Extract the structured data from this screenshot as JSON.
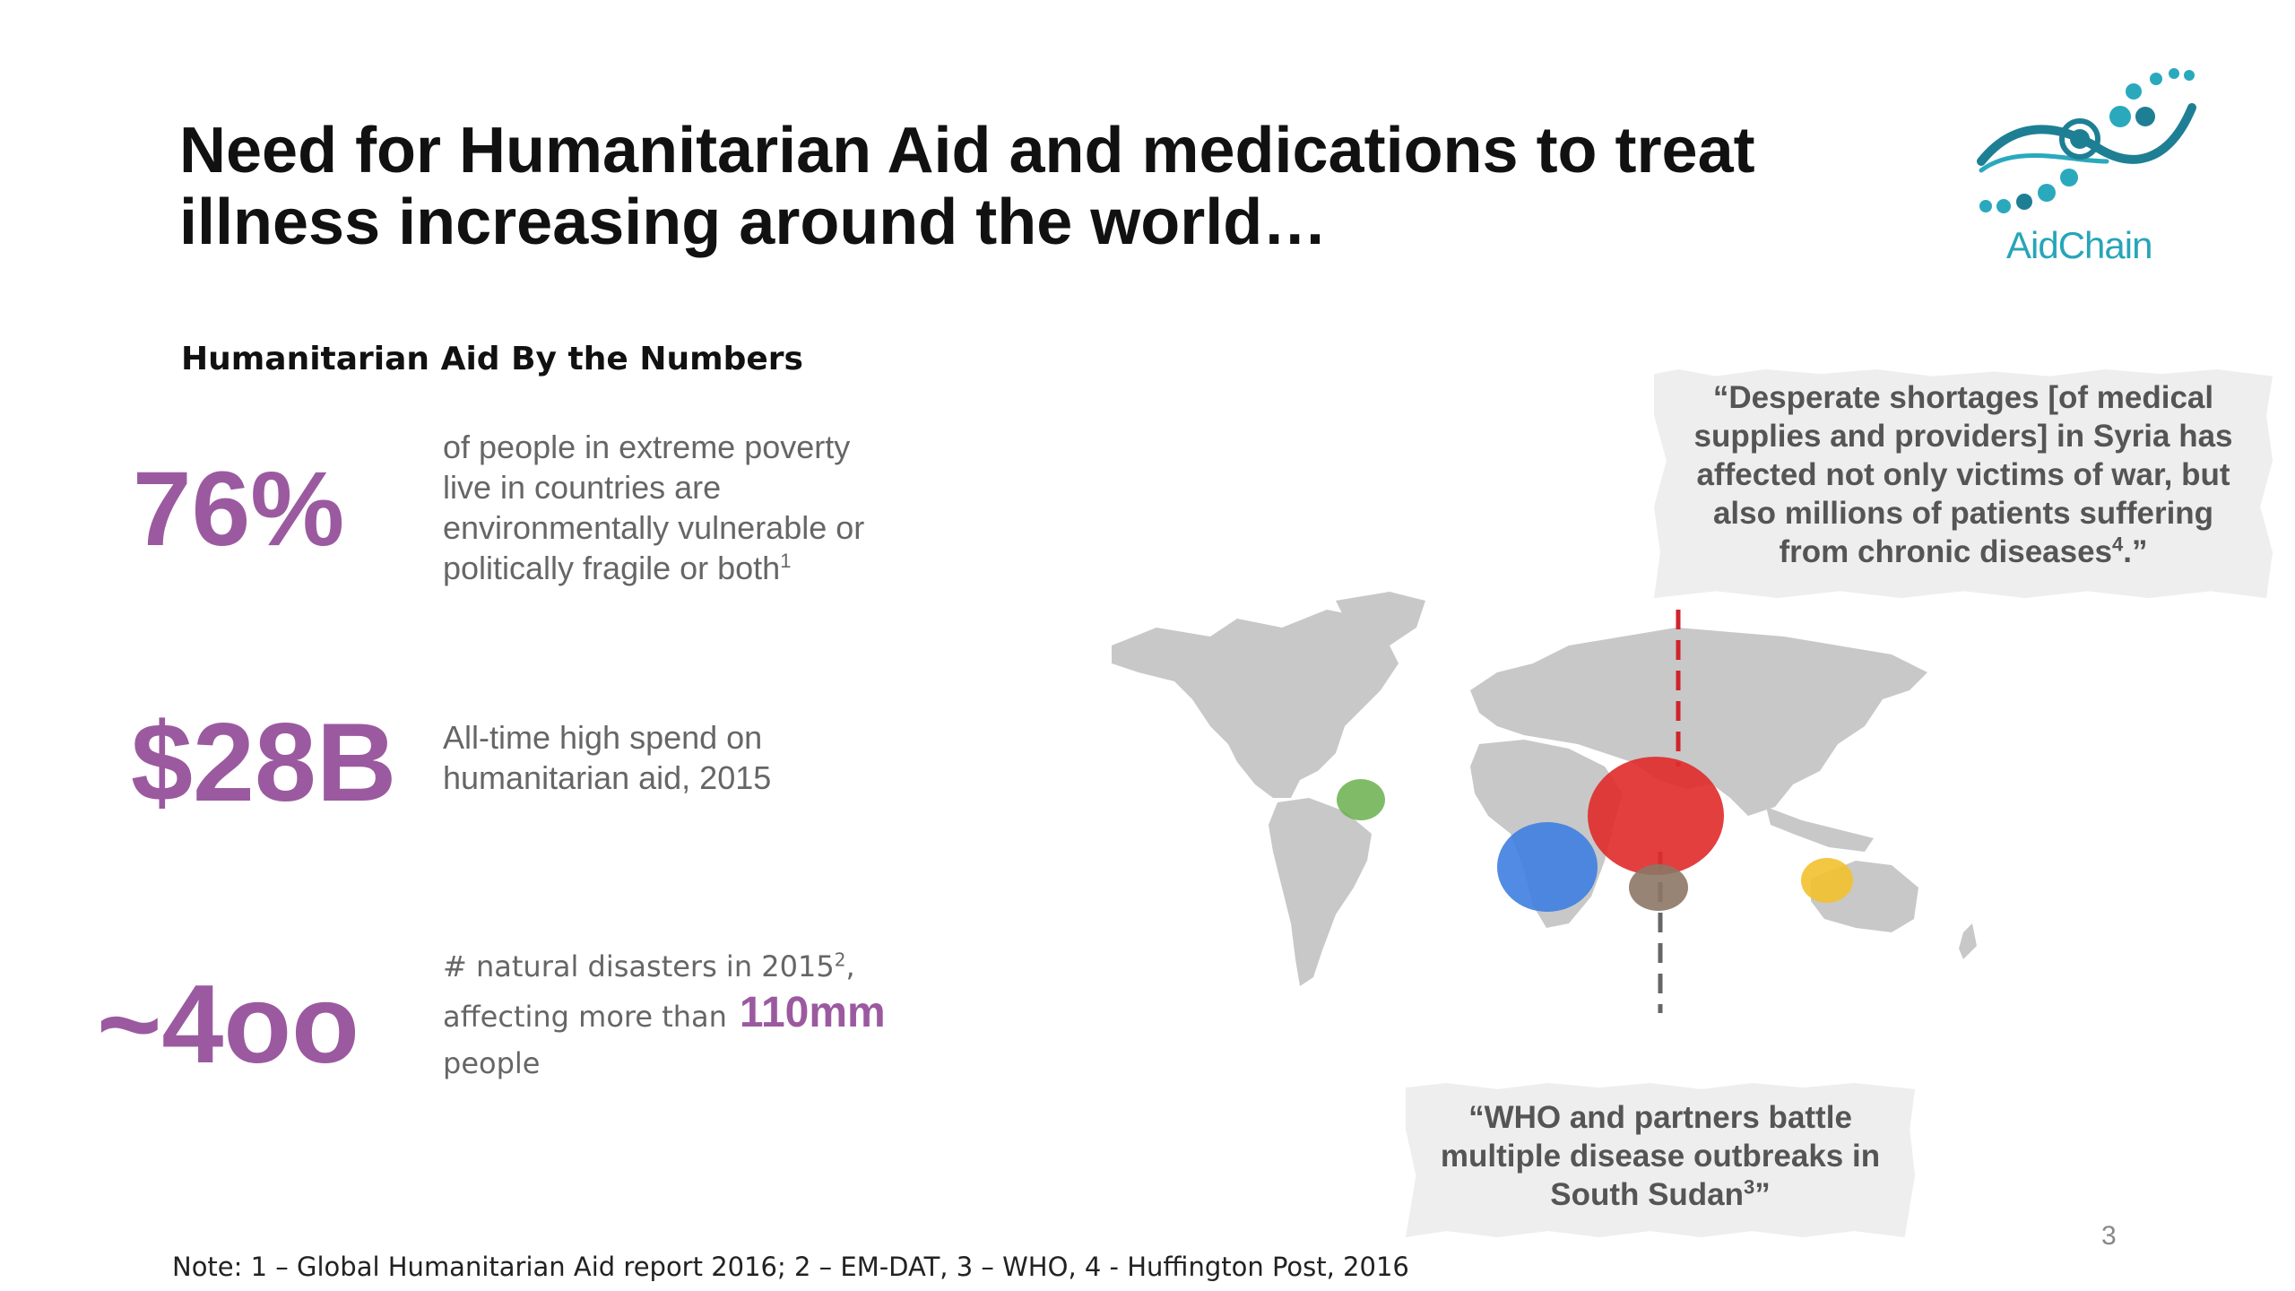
{
  "title": {
    "line1": "Need for Humanitarian Aid and medications to treat",
    "line2": "illness increasing around the world…"
  },
  "logo": {
    "text": "AidChain",
    "color": "#27a5b8"
  },
  "section_title": "Humanitarian Aid By the Numbers",
  "stats": [
    {
      "value": "76%",
      "lines": [
        "of people in extreme poverty",
        "live in countries are",
        "environmentally vulnerable or",
        "politically fragile or both"
      ],
      "footnote": "1"
    },
    {
      "value": "$28B",
      "lines": [
        "All-time high spend on",
        "humanitarian aid, 2015"
      ]
    },
    {
      "value": "~4oo",
      "line1": "# natural disasters in 2015",
      "line1_footnote": "2",
      "line1_suffix": ",",
      "line2": "affecting more than",
      "highlight": "110mm",
      "line3": "people"
    }
  ],
  "colors": {
    "accent_purple": "#9b5aa0",
    "map_gray": "#c8c8c8",
    "bubble_red": "#e02a2a",
    "bubble_blue": "#3e7ee0",
    "bubble_green": "#6ab04c",
    "bubble_brown": "#8c7766",
    "bubble_yellow": "#f2c12e"
  },
  "quotes": {
    "syria": {
      "lines": [
        "“Desperate shortages [of medical",
        "supplies and providers] in Syria has",
        "affected not only victims of war, but",
        "also millions of patients suffering"
      ],
      "last_line": "from chronic diseases",
      "footnote": "4",
      "closing": ".”"
    },
    "sudan": {
      "lines": [
        "“WHO and partners battle",
        "multiple disease outbreaks in"
      ],
      "last_line": "South Sudan",
      "footnote": "3",
      "closing": "”"
    }
  },
  "page_number": "3",
  "note": "Note: 1 – Global Humanitarian Aid report 2016; 2 – EM-DAT, 3 – WHO, 4 - Huffington Post, 2016"
}
